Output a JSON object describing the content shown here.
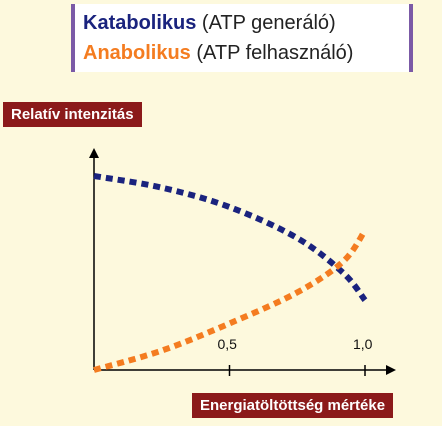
{
  "chart_data": {
    "type": "line",
    "legend_placement": "top",
    "series": [
      {
        "name": "Katabolikus",
        "name_suffix": " (ATP generáló)",
        "color": "#1a237e",
        "x": [
          0,
          0.25,
          0.5,
          0.75,
          0.92,
          1.0
        ],
        "y": [
          1.0,
          0.94,
          0.84,
          0.68,
          0.5,
          0.36
        ]
      },
      {
        "name": "Anabolikus",
        "name_suffix": " (ATP felhasználó)",
        "color": "#f47c20",
        "x": [
          0,
          0.25,
          0.5,
          0.75,
          0.92,
          1.0
        ],
        "y": [
          0.0,
          0.1,
          0.24,
          0.4,
          0.56,
          0.72
        ]
      }
    ],
    "xticks": [
      {
        "value": 0.5,
        "label": "0,5"
      },
      {
        "value": 1.0,
        "label": "1,0"
      }
    ],
    "xlabel": "Energiatöltöttség mértéke",
    "ylabel": "Relatív intenzitás",
    "xlim": [
      0,
      1.1
    ],
    "ylim": [
      0,
      1.08
    ],
    "grid": false
  }
}
